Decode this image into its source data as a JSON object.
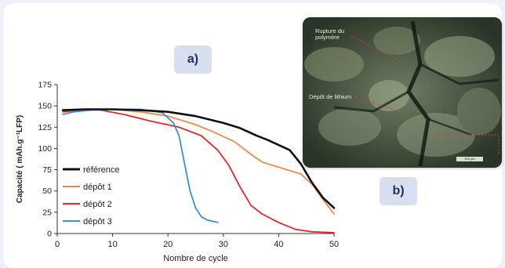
{
  "labels": {
    "panel_a": "a)",
    "panel_b": "b)"
  },
  "photo": {
    "annotation_rupture": "Rupture du polymère",
    "annotation_depot": "Dépôt de lithium",
    "scale_text": "100 µm"
  },
  "colors": {
    "reference": "#111111",
    "depot1": "#f0884a",
    "depot2": "#e8262b",
    "depot3": "#3a8fd6",
    "badge_bg": "#d7dff0",
    "badge_text": "#1f2f5e",
    "annotation_line": "#d0452f"
  },
  "chart_data": {
    "type": "line",
    "xlabel": "Nombre de cycle",
    "ylabel": "Capacité ( mAh.g⁻¹LFP)",
    "xlim": [
      0,
      50
    ],
    "ylim": [
      0,
      175
    ],
    "xticks": [
      0,
      10,
      20,
      30,
      40,
      50
    ],
    "yticks": [
      0,
      25,
      50,
      75,
      100,
      125,
      150,
      175
    ],
    "grid": false,
    "legend_position": "left",
    "series": [
      {
        "name": "référence",
        "color": "#111111",
        "x": [
          1,
          5,
          10,
          15,
          20,
          25,
          30,
          33,
          36,
          38,
          40,
          42,
          44,
          46,
          48,
          50
        ],
        "y": [
          145,
          146,
          146,
          145,
          143,
          138,
          130,
          124,
          115,
          110,
          104,
          98,
          82,
          60,
          42,
          30
        ]
      },
      {
        "name": "dépôt 1",
        "color": "#f0884a",
        "x": [
          1,
          5,
          10,
          15,
          20,
          25,
          28,
          32,
          35,
          37,
          40,
          44,
          46,
          48,
          50
        ],
        "y": [
          143,
          146,
          146,
          143,
          138,
          128,
          120,
          108,
          93,
          84,
          78,
          70,
          58,
          40,
          23
        ]
      },
      {
        "name": "dépôt 2",
        "color": "#e8262b",
        "x": [
          1,
          5,
          8,
          12,
          17,
          22,
          26,
          29,
          31,
          33,
          35,
          37,
          40,
          43,
          46,
          50
        ],
        "y": [
          143,
          146,
          145,
          140,
          132,
          125,
          115,
          98,
          80,
          55,
          33,
          23,
          13,
          5,
          2,
          1
        ]
      },
      {
        "name": "dépôt 3",
        "color": "#3a8fd6",
        "x": [
          1,
          3,
          6,
          10,
          15,
          19,
          21,
          22,
          23,
          24,
          25,
          26,
          27,
          29
        ],
        "y": [
          140,
          143,
          145,
          146,
          146,
          142,
          130,
          115,
          82,
          50,
          30,
          20,
          16,
          13
        ]
      }
    ]
  }
}
